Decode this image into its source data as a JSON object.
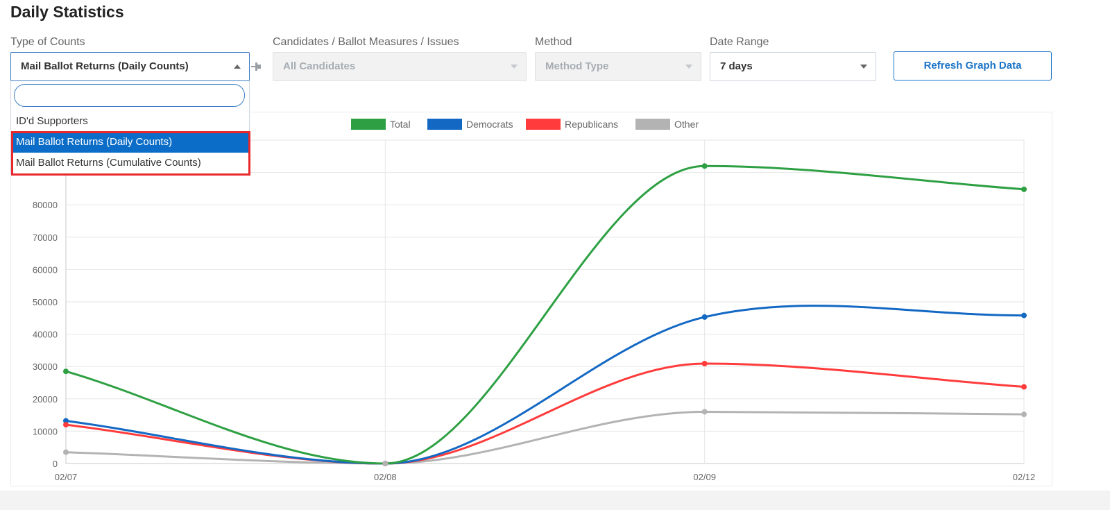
{
  "page_title": "Daily Statistics",
  "filters": {
    "type_of_counts": {
      "label": "Type of Counts",
      "value": "Mail Ballot Returns (Daily Counts)"
    },
    "candidates": {
      "label": "Candidates / Ballot Measures / Issues",
      "value": "All Candidates"
    },
    "method": {
      "label": "Method",
      "value": "Method Type"
    },
    "date_range": {
      "label": "Date Range",
      "value": "7 days"
    }
  },
  "refresh_button_label": "Refresh Graph Data",
  "dropdown": {
    "search_value": "",
    "options": [
      {
        "label": "ID'd Supporters",
        "selected": false
      },
      {
        "label": "Mail Ballot Returns (Daily Counts)",
        "selected": true
      },
      {
        "label": "Mail Ballot Returns (Cumulative Counts)",
        "selected": false
      }
    ]
  },
  "chart_data": {
    "type": "line",
    "categories": [
      "02/07",
      "02/08",
      "02/09",
      "02/12"
    ],
    "y_ticks": [
      0,
      10000,
      20000,
      30000,
      40000,
      50000,
      60000,
      70000,
      80000
    ],
    "ylim": [
      0,
      100000
    ],
    "grid": true,
    "legend_placement": "top-center",
    "series": [
      {
        "name": "Total",
        "color": "#2ea043",
        "values": [
          28500,
          0,
          92000,
          84800
        ]
      },
      {
        "name": "Democrats",
        "color": "#1368c4",
        "values": [
          13200,
          0,
          45300,
          45800
        ]
      },
      {
        "name": "Republicans",
        "color": "#ff3b3b",
        "values": [
          12000,
          0,
          30900,
          23700
        ]
      },
      {
        "name": "Other",
        "color": "#b3b3b3",
        "values": [
          3500,
          0,
          16000,
          15200
        ]
      }
    ]
  },
  "colors": {
    "accent": "#1a73c7",
    "selected_option_bg": "#0b6dc7",
    "highlight_border": "#e8282b"
  }
}
